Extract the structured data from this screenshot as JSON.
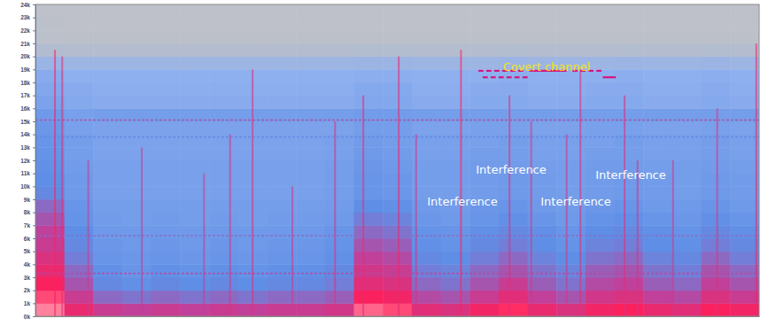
{
  "chart_data": {
    "type": "spectrogram",
    "xlim": [
      0,
      100
    ],
    "ylim": [
      0,
      24000
    ],
    "tick_labels": "y",
    "yticks": [
      {
        "value": 0,
        "label": "0k"
      },
      {
        "value": 1000,
        "label": "1k"
      },
      {
        "value": 2000,
        "label": "2k"
      },
      {
        "value": 3000,
        "label": "3k"
      },
      {
        "value": 4000,
        "label": "4k"
      },
      {
        "value": 5000,
        "label": "5k"
      },
      {
        "value": 6000,
        "label": "6k"
      },
      {
        "value": 7000,
        "label": "7k"
      },
      {
        "value": 8000,
        "label": "8k"
      },
      {
        "value": 9000,
        "label": "9k"
      },
      {
        "value": 10000,
        "label": "10k"
      },
      {
        "value": 11000,
        "label": "11k"
      },
      {
        "value": 12000,
        "label": "12k"
      },
      {
        "value": 13000,
        "label": "13k"
      },
      {
        "value": 14000,
        "label": "14k"
      },
      {
        "value": 15000,
        "label": "15k"
      },
      {
        "value": 16000,
        "label": "16k"
      },
      {
        "value": 17000,
        "label": "17k"
      },
      {
        "value": 18000,
        "label": "18k"
      },
      {
        "value": 19000,
        "label": "19k"
      },
      {
        "value": 20000,
        "label": "20k"
      },
      {
        "value": 21000,
        "label": "21k"
      },
      {
        "value": 22000,
        "label": "22k"
      },
      {
        "value": 23000,
        "label": "23k"
      },
      {
        "value": 24000,
        "label": "24k"
      }
    ],
    "time_bins": [
      0,
      4,
      8,
      12,
      16,
      20,
      24,
      28,
      32,
      36,
      40,
      44,
      48,
      52,
      56,
      60,
      64,
      68,
      72,
      76,
      80,
      84,
      88,
      92,
      96,
      100
    ],
    "freq_bins": [
      0,
      1000,
      2000,
      3000,
      4000,
      5000,
      6000,
      7000,
      8000,
      9000,
      10000,
      11000,
      12000,
      13000,
      14000,
      15000,
      16000,
      17000,
      18000,
      19000,
      20000,
      21000,
      22000,
      23000,
      24000
    ],
    "cells": [
      [
        92,
        80,
        72,
        70,
        72,
        70,
        72,
        70,
        72,
        72,
        74,
        90,
        88,
        78,
        76,
        82,
        86,
        80,
        76,
        82,
        84,
        80,
        78,
        84,
        82
      ],
      [
        88,
        72,
        62,
        60,
        62,
        60,
        62,
        60,
        62,
        62,
        64,
        84,
        82,
        68,
        66,
        72,
        78,
        70,
        66,
        74,
        76,
        70,
        68,
        76,
        72
      ],
      [
        84,
        66,
        56,
        54,
        56,
        55,
        56,
        55,
        56,
        56,
        58,
        78,
        76,
        62,
        60,
        66,
        72,
        64,
        60,
        68,
        70,
        64,
        62,
        70,
        66
      ],
      [
        80,
        62,
        54,
        52,
        54,
        53,
        54,
        53,
        54,
        54,
        56,
        74,
        72,
        58,
        57,
        62,
        66,
        60,
        57,
        64,
        66,
        60,
        58,
        66,
        62
      ],
      [
        76,
        58,
        52,
        51,
        52,
        51,
        52,
        51,
        52,
        52,
        54,
        70,
        68,
        56,
        55,
        58,
        62,
        57,
        55,
        60,
        62,
        57,
        56,
        62,
        58
      ],
      [
        72,
        56,
        51,
        50,
        51,
        50,
        51,
        50,
        51,
        51,
        53,
        66,
        64,
        54,
        53,
        56,
        58,
        55,
        53,
        57,
        58,
        55,
        54,
        58,
        56
      ],
      [
        70,
        55,
        50,
        50,
        50,
        50,
        50,
        50,
        50,
        50,
        52,
        62,
        60,
        53,
        52,
        54,
        56,
        54,
        52,
        55,
        56,
        54,
        53,
        56,
        54
      ],
      [
        66,
        53,
        49,
        48,
        49,
        48,
        49,
        48,
        49,
        49,
        50,
        58,
        57,
        51,
        50,
        52,
        54,
        52,
        50,
        53,
        54,
        52,
        51,
        54,
        52
      ],
      [
        62,
        52,
        48,
        48,
        48,
        48,
        48,
        48,
        48,
        48,
        49,
        55,
        54,
        50,
        49,
        51,
        52,
        50,
        49,
        51,
        52,
        50,
        50,
        52,
        50
      ],
      [
        56,
        50,
        47,
        47,
        47,
        47,
        47,
        47,
        47,
        47,
        48,
        52,
        51,
        48,
        48,
        49,
        50,
        49,
        48,
        49,
        50,
        49,
        48,
        50,
        49
      ],
      [
        55,
        50,
        47,
        47,
        47,
        47,
        47,
        47,
        47,
        47,
        48,
        52,
        51,
        48,
        48,
        49,
        50,
        49,
        48,
        49,
        50,
        49,
        48,
        50,
        49
      ],
      [
        54,
        49,
        47,
        47,
        47,
        47,
        47,
        47,
        47,
        47,
        48,
        51,
        50,
        48,
        48,
        49,
        49,
        48,
        48,
        49,
        49,
        48,
        48,
        49,
        48
      ],
      [
        53,
        48,
        46,
        46,
        46,
        46,
        46,
        46,
        46,
        46,
        47,
        50,
        49,
        47,
        47,
        48,
        48,
        47,
        47,
        48,
        48,
        47,
        47,
        48,
        47
      ],
      [
        52,
        48,
        46,
        46,
        46,
        46,
        46,
        46,
        46,
        46,
        47,
        49,
        48,
        47,
        47,
        47,
        48,
        47,
        47,
        47,
        48,
        47,
        47,
        48,
        47
      ],
      [
        51,
        47,
        46,
        46,
        46,
        46,
        46,
        46,
        46,
        46,
        46,
        48,
        48,
        46,
        46,
        47,
        47,
        46,
        46,
        47,
        47,
        46,
        46,
        47,
        46
      ],
      [
        50,
        47,
        48,
        48,
        48,
        48,
        48,
        48,
        48,
        48,
        48,
        49,
        49,
        48,
        48,
        48,
        48,
        48,
        48,
        48,
        48,
        48,
        48,
        48,
        48
      ],
      [
        46,
        43,
        42,
        42,
        42,
        42,
        42,
        42,
        42,
        42,
        42,
        44,
        44,
        42,
        42,
        43,
        43,
        42,
        42,
        43,
        43,
        42,
        42,
        43,
        42
      ],
      [
        44,
        42,
        41,
        41,
        41,
        41,
        41,
        41,
        41,
        41,
        41,
        43,
        43,
        41,
        41,
        42,
        42,
        41,
        41,
        42,
        42,
        41,
        41,
        42,
        41
      ],
      [
        42,
        40,
        40,
        40,
        40,
        40,
        40,
        40,
        40,
        40,
        40,
        41,
        41,
        40,
        40,
        40,
        41,
        40,
        40,
        40,
        41,
        40,
        40,
        41,
        40
      ],
      [
        32,
        30,
        30,
        30,
        30,
        30,
        30,
        30,
        30,
        30,
        30,
        31,
        31,
        30,
        30,
        30,
        31,
        30,
        30,
        30,
        31,
        30,
        30,
        31,
        30
      ],
      [
        14,
        12,
        12,
        12,
        12,
        12,
        12,
        12,
        12,
        12,
        12,
        13,
        13,
        12,
        12,
        12,
        13,
        12,
        12,
        12,
        13,
        12,
        12,
        13,
        12
      ],
      [
        7,
        6,
        6,
        6,
        6,
        6,
        6,
        6,
        6,
        6,
        6,
        6,
        6,
        6,
        6,
        6,
        6,
        6,
        6,
        6,
        6,
        6,
        6,
        6,
        6
      ],
      [
        6,
        5,
        5,
        5,
        5,
        5,
        5,
        5,
        5,
        5,
        5,
        5,
        5,
        5,
        5,
        5,
        5,
        5,
        5,
        5,
        5,
        5,
        5,
        5,
        5
      ],
      [
        5,
        5,
        5,
        5,
        5,
        5,
        5,
        5,
        5,
        5,
        5,
        5,
        5,
        5,
        5,
        5,
        5,
        5,
        5,
        5,
        5,
        5,
        5,
        5,
        5
      ]
    ],
    "color_levels": [
      0,
      20,
      40,
      55,
      70,
      85,
      100
    ],
    "level_colors": [
      "#c4c4c4",
      "#aab9d6",
      "#8fb0ef",
      "#5f8ee6",
      "#c0409a",
      "#ff1f5a",
      "#fff2ec"
    ],
    "tones": [
      {
        "freq": 15100,
        "t0": 0,
        "t1": 100,
        "level": 68
      },
      {
        "freq": 13800,
        "t0": 0,
        "t1": 100,
        "level": 56
      },
      {
        "freq": 6200,
        "t0": 0,
        "t1": 100,
        "level": 62
      },
      {
        "freq": 3300,
        "t0": 0,
        "t1": 100,
        "level": 68
      }
    ],
    "impulses": [
      {
        "x": 2.7,
        "top": 20500,
        "level": 82
      },
      {
        "x": 3.7,
        "top": 20000,
        "level": 78
      },
      {
        "x": 7.3,
        "top": 12000,
        "level": 72
      },
      {
        "x": 14.7,
        "top": 13000,
        "level": 72
      },
      {
        "x": 23.3,
        "top": 11000,
        "level": 72
      },
      {
        "x": 26.9,
        "top": 14000,
        "level": 74
      },
      {
        "x": 30.0,
        "top": 19000,
        "level": 76
      },
      {
        "x": 35.5,
        "top": 10000,
        "level": 72
      },
      {
        "x": 41.4,
        "top": 15000,
        "level": 74
      },
      {
        "x": 45.3,
        "top": 17000,
        "level": 78
      },
      {
        "x": 50.2,
        "top": 20000,
        "level": 80
      },
      {
        "x": 52.6,
        "top": 14000,
        "level": 74
      },
      {
        "x": 58.8,
        "top": 20500,
        "level": 84
      },
      {
        "x": 65.5,
        "top": 17000,
        "level": 78
      },
      {
        "x": 68.5,
        "top": 15000,
        "level": 76
      },
      {
        "x": 73.4,
        "top": 14000,
        "level": 74
      },
      {
        "x": 75.3,
        "top": 19000,
        "level": 78
      },
      {
        "x": 81.4,
        "top": 17000,
        "level": 76
      },
      {
        "x": 83.2,
        "top": 12000,
        "level": 74
      },
      {
        "x": 88.1,
        "top": 12000,
        "level": 74
      },
      {
        "x": 94.2,
        "top": 16000,
        "level": 76
      },
      {
        "x": 99.6,
        "top": 21000,
        "level": 82
      }
    ],
    "covert_channel": {
      "label": "Covert channel",
      "color": "#d6157f",
      "segments": [
        {
          "freq": 18900,
          "t0": 61.2,
          "t1": 61.9
        },
        {
          "freq": 18900,
          "t0": 62.3,
          "t1": 63.0
        },
        {
          "freq": 18900,
          "t0": 63.4,
          "t1": 64.1
        },
        {
          "freq": 18900,
          "t0": 64.5,
          "t1": 65.2
        },
        {
          "freq": 18900,
          "t0": 65.6,
          "t1": 66.3
        },
        {
          "freq": 18900,
          "t0": 66.7,
          "t1": 67.4
        },
        {
          "freq": 18900,
          "t0": 68.2,
          "t1": 73.4
        },
        {
          "freq": 18900,
          "t0": 74.2,
          "t1": 74.9
        },
        {
          "freq": 18900,
          "t0": 75.3,
          "t1": 76.0
        },
        {
          "freq": 18900,
          "t0": 76.4,
          "t1": 77.1
        },
        {
          "freq": 18900,
          "t0": 77.5,
          "t1": 78.2
        },
        {
          "freq": 18400,
          "t0": 61.8,
          "t1": 62.5
        },
        {
          "freq": 18400,
          "t0": 62.9,
          "t1": 63.6
        },
        {
          "freq": 18400,
          "t0": 64.0,
          "t1": 64.7
        },
        {
          "freq": 18400,
          "t0": 65.1,
          "t1": 65.8
        },
        {
          "freq": 18400,
          "t0": 66.2,
          "t1": 66.9
        },
        {
          "freq": 18400,
          "t0": 67.3,
          "t1": 68.0
        },
        {
          "freq": 18400,
          "t0": 78.4,
          "t1": 80.2
        }
      ]
    },
    "annotations": [
      {
        "text": "Interference"
      },
      {
        "text": "Interference"
      },
      {
        "text": "Interference"
      },
      {
        "text": "Interference"
      }
    ]
  }
}
